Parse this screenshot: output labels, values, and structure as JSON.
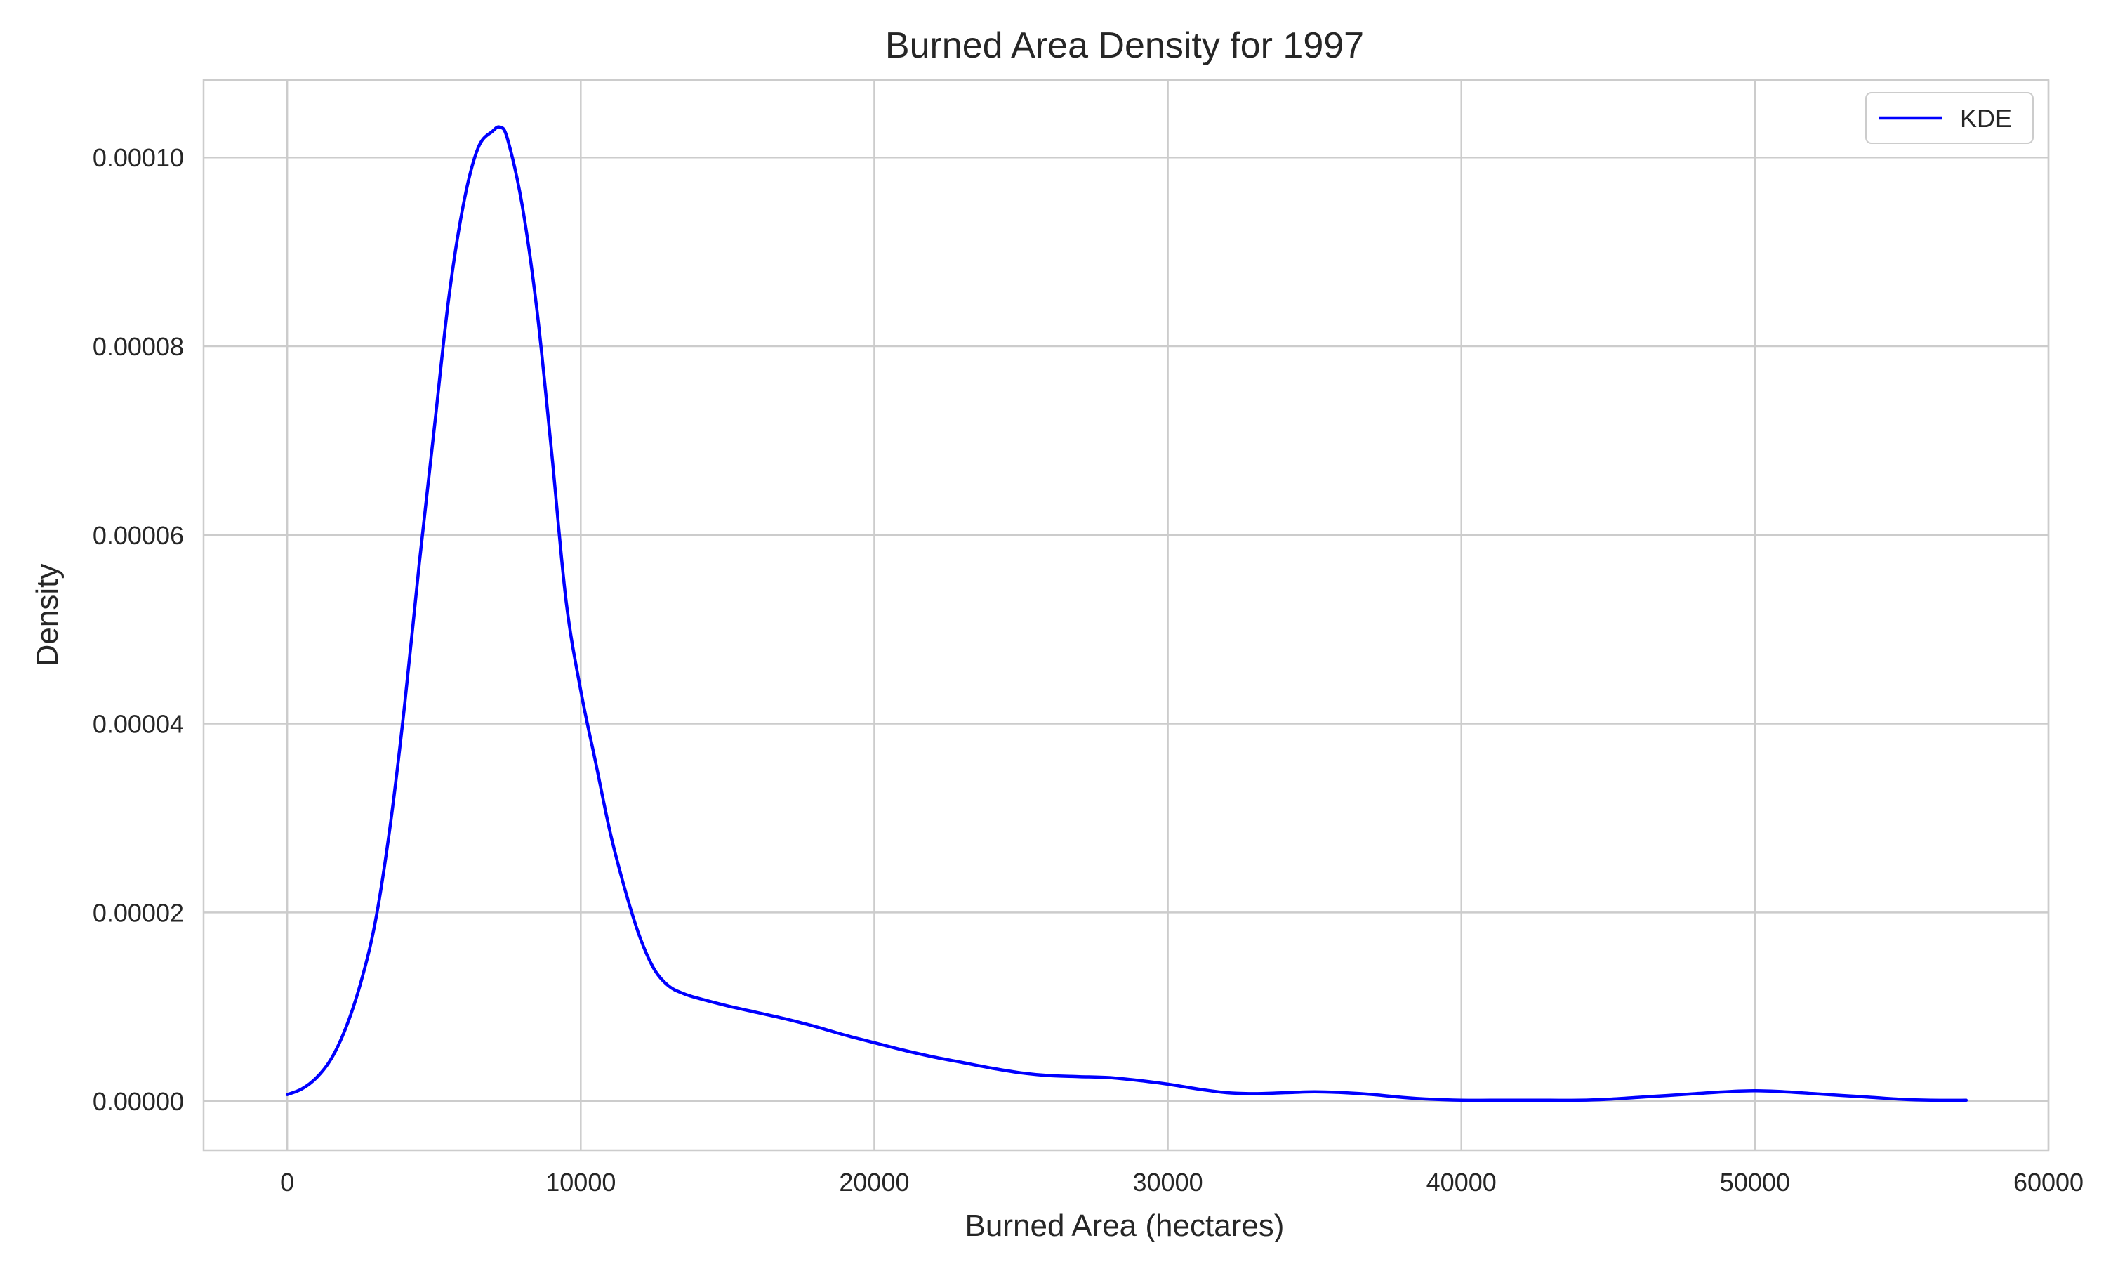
{
  "chart_data": {
    "type": "line",
    "title": "Burned Area Density for 1997",
    "xlabel": "Burned Area (hectares)",
    "ylabel": "Density",
    "xlim": [
      -2850,
      60000
    ],
    "ylim": [
      -5.2e-06,
      0.0001082
    ],
    "x_ticks": [
      0,
      10000,
      20000,
      30000,
      40000,
      50000,
      60000
    ],
    "x_tick_labels": [
      "0",
      "10000",
      "20000",
      "30000",
      "40000",
      "50000",
      "60000"
    ],
    "y_ticks": [
      0,
      2e-05,
      4e-05,
      6e-05,
      8e-05,
      0.0001
    ],
    "y_tick_labels": [
      "0.00000",
      "0.00002",
      "0.00004",
      "0.00006",
      "0.00008",
      "0.00010"
    ],
    "grid": true,
    "legend": {
      "position": "top-right",
      "entries": [
        "KDE"
      ]
    },
    "colors": {
      "line": "#0000ff",
      "grid": "#cccccc",
      "text": "#262626"
    },
    "series": [
      {
        "name": "KDE",
        "x": [
          0,
          500,
          1000,
          1500,
          2000,
          2500,
          3000,
          3500,
          4000,
          4500,
          5000,
          5500,
          6000,
          6500,
          7000,
          7250,
          7500,
          8000,
          8500,
          9000,
          9500,
          10000,
          10500,
          11000,
          11500,
          12000,
          12500,
          13000,
          13500,
          14000,
          15000,
          16000,
          17000,
          18000,
          19000,
          20000,
          21000,
          22000,
          23000,
          24000,
          25000,
          26000,
          27000,
          28000,
          29000,
          30000,
          31000,
          32000,
          33000,
          34000,
          35000,
          36000,
          37000,
          38000,
          39000,
          40000,
          41000,
          42000,
          43000,
          44000,
          45000,
          46000,
          47000,
          48000,
          49000,
          50000,
          51000,
          52000,
          53000,
          54000,
          55000,
          56000,
          57200
        ],
        "values": [
          7e-07,
          1.3e-06,
          2.5e-06,
          4.5e-06,
          7.8e-06,
          1.25e-05,
          1.9e-05,
          2.9e-05,
          4.2e-05,
          5.7e-05,
          7.1e-05,
          8.5e-05,
          9.5e-05,
          0.000101,
          0.0001028,
          0.0001032,
          0.000102,
          9.5e-05,
          8.4e-05,
          6.9e-05,
          5.3e-05,
          4.35e-05,
          3.6e-05,
          2.85e-05,
          2.25e-05,
          1.75e-05,
          1.4e-05,
          1.22e-05,
          1.14e-05,
          1.09e-05,
          1.01e-05,
          9.4e-06,
          8.7e-06,
          7.9e-06,
          7e-06,
          6.2e-06,
          5.4e-06,
          4.7e-06,
          4.1e-06,
          3.5e-06,
          3e-06,
          2.7e-06,
          2.6e-06,
          2.5e-06,
          2.2e-06,
          1.8e-06,
          1.3e-06,
          9e-07,
          8e-07,
          9e-07,
          1e-06,
          9e-07,
          7e-07,
          4e-07,
          2e-07,
          1e-07,
          1e-07,
          1e-07,
          1e-07,
          1e-07,
          2e-07,
          4e-07,
          6e-07,
          8e-07,
          1e-06,
          1.1e-06,
          1e-06,
          8e-07,
          6e-07,
          4e-07,
          2e-07,
          1e-07,
          1e-07
        ]
      }
    ]
  }
}
